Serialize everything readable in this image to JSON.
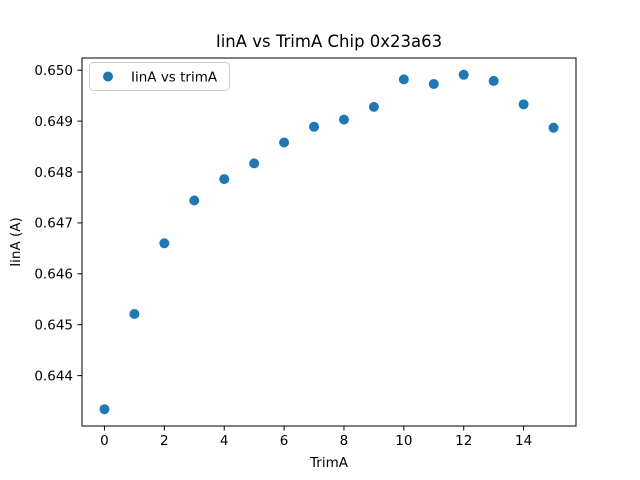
{
  "chart_data": {
    "type": "scatter",
    "title": "IinA vs TrimA Chip 0x23a63",
    "xlabel": "TrimA",
    "ylabel": "IinA (A)",
    "legend": {
      "label": "IinA vs trimA",
      "position": "upper left"
    },
    "marker": {
      "shape": "circle",
      "color": "#1f77b4",
      "radius_px": 5
    },
    "x": [
      0,
      1,
      2,
      3,
      4,
      5,
      6,
      7,
      8,
      9,
      10,
      11,
      12,
      13,
      14,
      15
    ],
    "y": [
      0.64334,
      0.64521,
      0.6466,
      0.64744,
      0.64786,
      0.64817,
      0.64858,
      0.64889,
      0.64903,
      0.64928,
      0.64982,
      0.64973,
      0.64991,
      0.64979,
      0.64933,
      0.64887
    ],
    "xlim": [
      -0.75,
      15.75
    ],
    "ylim": [
      0.64301,
      0.65024
    ],
    "xticks": {
      "values": [
        0,
        2,
        4,
        6,
        8,
        10,
        12,
        14
      ],
      "labels": [
        "0",
        "2",
        "4",
        "6",
        "8",
        "10",
        "12",
        "14"
      ]
    },
    "yticks": {
      "values": [
        0.644,
        0.645,
        0.646,
        0.647,
        0.648,
        0.649,
        0.65
      ],
      "labels": [
        "0.644",
        "0.645",
        "0.646",
        "0.647",
        "0.648",
        "0.649",
        "0.650"
      ]
    },
    "grid": false,
    "background_color": "#ffffff",
    "axes_color": "#000000"
  }
}
